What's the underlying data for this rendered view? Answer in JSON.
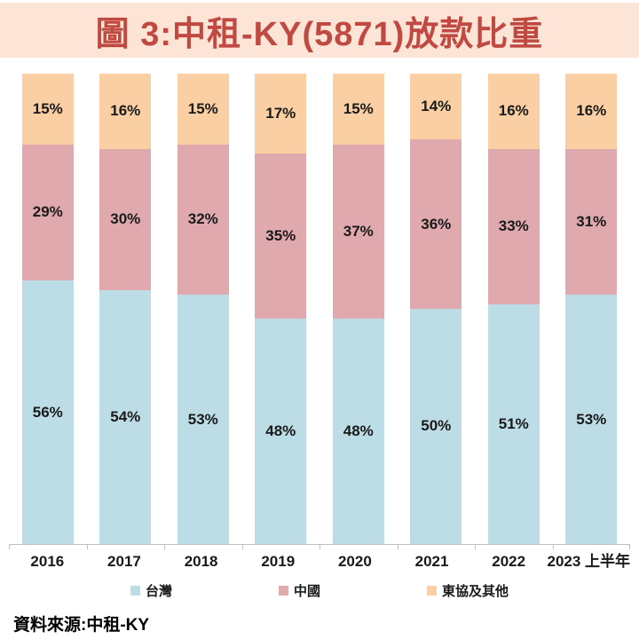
{
  "title": "圖 3:中租-KY(5871)放款比重",
  "source_note": "資料來源:中租-KY",
  "colors": {
    "banner_bg": "#FCE4D6",
    "title_text": "#C04A42",
    "axis": "#BFBFBF",
    "label_text": "#1A1A1A",
    "taiwan": "#BCDCE6",
    "china": "#E0A9AE",
    "asean_others": "#FACFA3"
  },
  "chart_data": {
    "type": "bar",
    "variant": "stacked-100-percent",
    "orientation": "vertical",
    "unit": "%",
    "title": "圖 3:中租-KY(5871)放款比重",
    "xlabel": "",
    "ylabel": "",
    "ylim": [
      0,
      100
    ],
    "grid": false,
    "legend_position": "bottom",
    "value_labels": "inside-center",
    "categories": [
      "2016",
      "2017",
      "2018",
      "2019",
      "2020",
      "2021",
      "2022",
      "2023 上半年"
    ],
    "series": [
      {
        "key": "taiwan",
        "name": "台灣",
        "color": "#BCDCE6",
        "values": [
          56,
          54,
          53,
          48,
          48,
          50,
          51,
          53
        ]
      },
      {
        "key": "china",
        "name": "中國",
        "color": "#E0A9AE",
        "values": [
          29,
          30,
          32,
          35,
          37,
          36,
          33,
          31
        ]
      },
      {
        "key": "asean-others",
        "name": "東協及其他",
        "color": "#FACFA3",
        "values": [
          15,
          16,
          15,
          17,
          15,
          14,
          16,
          16
        ]
      }
    ]
  }
}
